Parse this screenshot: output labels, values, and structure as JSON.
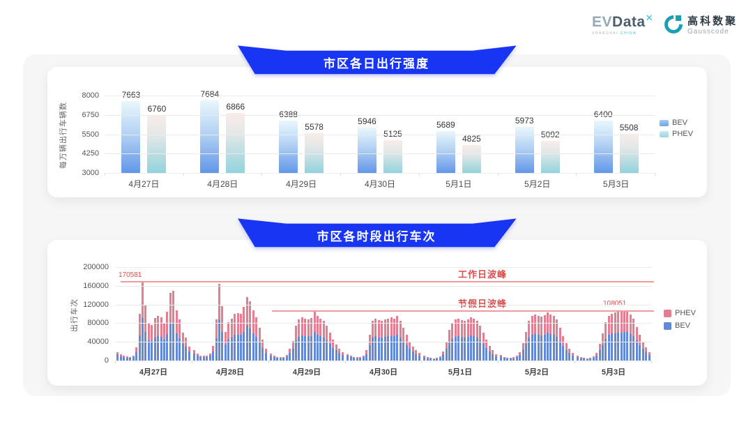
{
  "header": {
    "evdata_logo": {
      "ev": "EV",
      "data": "Data",
      "x_mark": "✕",
      "subtext_left": "SHANGHAI ",
      "subtext_right": "CHINA"
    },
    "gauss_logo": {
      "cn": "高科数聚",
      "en": "Gausscode"
    }
  },
  "colors": {
    "banner_blue": "#1835f4",
    "bev_gradient_top": "#e9f7fc",
    "bev_gradient_bottom": "#6297e8",
    "phev_gradient_top": "#f9ece9",
    "phev_gradient_bottom": "#92d3dc",
    "stack_bev": "#6289d8",
    "stack_phev": "#e27d92",
    "annotation_red": "#e04b4b",
    "reference_line_red": "#f09b9b"
  },
  "section_daily": {
    "title": "市区各日出行强度",
    "ylabel": "每万辆出行车辆数",
    "legend": [
      "BEV",
      "PHEV"
    ]
  },
  "section_hourly": {
    "title": "市区各时段出行车次",
    "ylabel": "出行车次",
    "legend": [
      "PHEV",
      "BEV"
    ],
    "annotations": {
      "workday_peak_label": "工作日波峰",
      "workday_peak_value": "170581",
      "holiday_peak_label": "节假日波峰",
      "holiday_peak_value": "108051"
    }
  },
  "chart_data": [
    {
      "type": "bar",
      "title": "市区各日出行强度",
      "categories": [
        "4月27日",
        "4月28日",
        "4月29日",
        "4月30日",
        "5月1日",
        "5月2日",
        "5月3日"
      ],
      "series": [
        {
          "name": "BEV",
          "values": [
            7663,
            7684,
            6388,
            5946,
            5689,
            5973,
            6400
          ]
        },
        {
          "name": "PHEV",
          "values": [
            6760,
            6866,
            5578,
            5125,
            4825,
            5092,
            5508
          ]
        }
      ],
      "ylabel": "每万辆出行车辆数",
      "ylim": [
        3000,
        8000
      ],
      "yticks": [
        8000,
        6750,
        5500,
        4250,
        3000
      ],
      "legend_position": "right",
      "grid": true
    },
    {
      "type": "bar-stacked",
      "title": "市区各时段出行车次",
      "categories": [
        "4月27日",
        "4月28日",
        "4月29日",
        "4月30日",
        "5月1日",
        "5月2日",
        "5月3日"
      ],
      "ylabel": "出行车次",
      "ylim": [
        0,
        200000
      ],
      "yticks": [
        200000,
        160000,
        120000,
        80000,
        40000,
        0
      ],
      "series_names": [
        "PHEV",
        "BEV"
      ],
      "legend_position": "right",
      "grid": true,
      "reference_lines": [
        {
          "label": "工作日波峰",
          "value": 170581
        },
        {
          "label": "节假日波峰",
          "value": 108051
        }
      ],
      "days": [
        {
          "date": "4月27日",
          "bev": [
            13000,
            9500,
            7000,
            6500,
            6000,
            8000,
            18000,
            54000,
            91000,
            62000,
            44000,
            42000,
            50000,
            52000,
            51000,
            45000,
            57000,
            79000,
            80000,
            59000,
            48000,
            36000,
            30000,
            20000
          ],
          "phev": [
            5000,
            3500,
            3000,
            2500,
            2000,
            3000,
            10000,
            46000,
            79581,
            57000,
            36000,
            34000,
            41000,
            43000,
            42000,
            36000,
            47000,
            66000,
            69000,
            49000,
            40000,
            24000,
            19000,
            10000
          ]
        },
        {
          "date": "4月28日",
          "bev": [
            15000,
            10500,
            8000,
            7000,
            8000,
            10500,
            20000,
            48000,
            88000,
            61000,
            35000,
            45000,
            50000,
            55000,
            56000,
            55000,
            62000,
            74000,
            69000,
            59000,
            51000,
            41000,
            27000,
            16000
          ],
          "phev": [
            7000,
            4500,
            3000,
            3000,
            3000,
            4500,
            12000,
            40000,
            76000,
            56000,
            27000,
            37000,
            40000,
            45000,
            46000,
            45000,
            53000,
            62000,
            58000,
            49000,
            42000,
            29000,
            18000,
            9000
          ]
        },
        {
          "date": "4月29日",
          "bev": [
            10500,
            7000,
            5500,
            5000,
            5500,
            8500,
            16000,
            26000,
            44000,
            51000,
            54000,
            53000,
            52000,
            53000,
            62000,
            56000,
            52000,
            49000,
            44000,
            36000,
            27000,
            22000,
            16000,
            12000
          ],
          "phev": [
            4500,
            3000,
            2500,
            2000,
            2500,
            3500,
            9000,
            16000,
            31000,
            37000,
            38000,
            37000,
            36000,
            38000,
            46000,
            40000,
            38000,
            36000,
            31000,
            24000,
            18000,
            13000,
            9000,
            6000
          ]
        },
        {
          "date": "4月30日",
          "bev": [
            10000,
            7000,
            5500,
            5000,
            5500,
            7500,
            14000,
            33000,
            49000,
            52000,
            50000,
            49000,
            51000,
            52000,
            53000,
            52000,
            55000,
            49000,
            41000,
            33000,
            25000,
            19000,
            14000,
            10500
          ],
          "phev": [
            4000,
            3000,
            2500,
            2000,
            2500,
            3500,
            8000,
            22000,
            36000,
            38000,
            37000,
            36000,
            37000,
            38000,
            39000,
            38000,
            41000,
            36000,
            29000,
            22000,
            15000,
            11000,
            8000,
            5500
          ]
        },
        {
          "date": "5月1日",
          "bev": [
            7000,
            5000,
            4200,
            3500,
            4200,
            6300,
            13000,
            25000,
            38000,
            46000,
            51000,
            52000,
            50000,
            49000,
            51000,
            54000,
            52000,
            49000,
            44000,
            36000,
            27000,
            20000,
            14000,
            9000
          ],
          "phev": [
            3000,
            2000,
            1800,
            1500,
            1800,
            2700,
            7000,
            15000,
            27000,
            34000,
            37000,
            38000,
            37000,
            36000,
            37000,
            39000,
            38000,
            36000,
            31000,
            24000,
            18000,
            12000,
            8000,
            5000
          ]
        },
        {
          "date": "5月2日",
          "bev": [
            8500,
            5600,
            4200,
            4200,
            4900,
            7000,
            11500,
            24000,
            36000,
            49000,
            55000,
            57000,
            56000,
            54000,
            56000,
            60000,
            57000,
            55000,
            51000,
            42000,
            31000,
            23000,
            16000,
            10000
          ],
          "phev": [
            3500,
            2400,
            1800,
            1800,
            2100,
            3000,
            6500,
            14000,
            26000,
            36000,
            40000,
            41000,
            40000,
            40000,
            41000,
            43000,
            42000,
            40000,
            37000,
            28000,
            21000,
            15000,
            10000,
            6000
          ]
        },
        {
          "date": "5月3日",
          "bev": [
            7000,
            5000,
            4200,
            3500,
            4200,
            6300,
            11000,
            23000,
            34000,
            47000,
            55000,
            58000,
            59000,
            60000,
            60000,
            62000,
            61000,
            57000,
            52000,
            43000,
            33000,
            25000,
            17500,
            11500
          ],
          "phev": [
            3000,
            2000,
            1800,
            1500,
            1800,
            2700,
            6000,
            13000,
            24000,
            35000,
            40000,
            42000,
            44000,
            45000,
            44000,
            46051,
            45000,
            42000,
            38000,
            29000,
            22000,
            15000,
            10500,
            6500
          ]
        }
      ]
    }
  ]
}
